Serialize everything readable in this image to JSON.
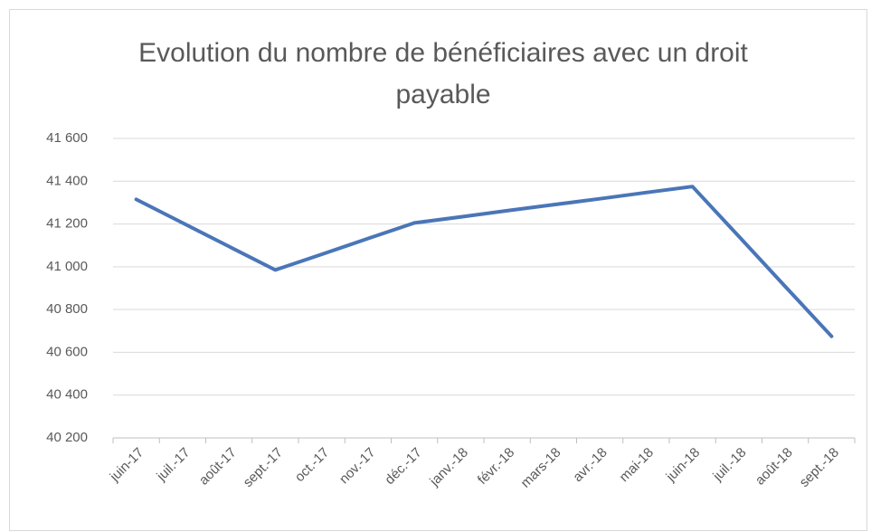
{
  "chart_data": {
    "type": "line",
    "title": "Evolution du nombre de bénéficiaires avec un droit payable",
    "categories": [
      "juin-17",
      "juil.-17",
      "août-17",
      "sept.-17",
      "oct.-17",
      "nov.-17",
      "déc.-17",
      "janv.-18",
      "févr.-18",
      "mars-18",
      "avr.-18",
      "mai-18",
      "juin-18",
      "juil.-18",
      "août-18",
      "sept.-18"
    ],
    "values": [
      41315,
      41205,
      41095,
      40985,
      41058,
      41132,
      41205,
      41233,
      41262,
      41290,
      41318,
      41347,
      41375,
      41142,
      40908,
      40675
    ],
    "color": "#4a76b8",
    "ylim": [
      40200,
      41600
    ],
    "yticks": [
      {
        "value": 40200,
        "label": "40 200"
      },
      {
        "value": 40400,
        "label": "40 400"
      },
      {
        "value": 40600,
        "label": "40 600"
      },
      {
        "value": 40800,
        "label": "40 800"
      },
      {
        "value": 41000,
        "label": "41 000"
      },
      {
        "value": 41200,
        "label": "41 200"
      },
      {
        "value": 41400,
        "label": "41 400"
      },
      {
        "value": 41600,
        "label": "41 600"
      }
    ],
    "grid": true
  }
}
